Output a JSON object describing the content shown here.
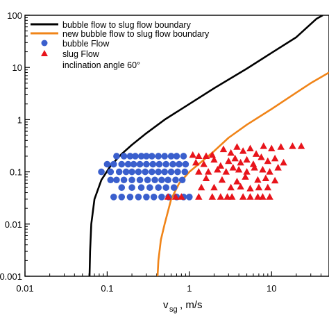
{
  "chart_data": {
    "type": "scatter",
    "title": "",
    "xlabel": {
      "main": "v",
      "sub": "sg",
      "unit": ",  m/s"
    },
    "ylabel": "",
    "x_scale": "log",
    "y_scale": "log",
    "xlim": [
      0.01,
      50
    ],
    "ylim": [
      0.001,
      100
    ],
    "x_ticks": [
      {
        "value": 0.01,
        "label": "0.01"
      },
      {
        "value": 0.1,
        "label": "0.1"
      },
      {
        "value": 1,
        "label": "1"
      },
      {
        "value": 10,
        "label": "10"
      }
    ],
    "y_ticks": [
      {
        "value": 0.001,
        "label": "0.001"
      },
      {
        "value": 0.01,
        "label": "0.01"
      },
      {
        "value": 0.1,
        "label": "0.1"
      },
      {
        "value": 1,
        "label": "1"
      },
      {
        "value": 10,
        "label": "10"
      },
      {
        "value": 100,
        "label": "100"
      }
    ],
    "grid": false,
    "legend": {
      "position": "top-left",
      "note": "inclination angle 60°"
    },
    "series": [
      {
        "name": "bubble flow to slug flow boundary",
        "kind": "line",
        "color": "#000000",
        "points": [
          [
            0.061,
            0.001
          ],
          [
            0.062,
            0.003
          ],
          [
            0.064,
            0.01
          ],
          [
            0.07,
            0.03
          ],
          [
            0.085,
            0.07
          ],
          [
            0.11,
            0.13
          ],
          [
            0.15,
            0.22
          ],
          [
            0.2,
            0.33
          ],
          [
            0.3,
            0.55
          ],
          [
            0.5,
            1.0
          ],
          [
            1,
            2.0
          ],
          [
            2,
            4.0
          ],
          [
            5,
            9.5
          ],
          [
            10,
            19
          ],
          [
            20,
            38
          ],
          [
            35,
            85
          ],
          [
            42,
            100
          ]
        ]
      },
      {
        "name": "new bubble flow to slug flow boundary",
        "kind": "line",
        "color": "#f08418",
        "points": [
          [
            0.41,
            0.001
          ],
          [
            0.42,
            0.002
          ],
          [
            0.45,
            0.005
          ],
          [
            0.5,
            0.01
          ],
          [
            0.6,
            0.03
          ],
          [
            0.75,
            0.06
          ],
          [
            1,
            0.1
          ],
          [
            1.5,
            0.17
          ],
          [
            2,
            0.25
          ],
          [
            3,
            0.45
          ],
          [
            5,
            0.8
          ],
          [
            10,
            1.6
          ],
          [
            20,
            3.3
          ],
          [
            30,
            5.0
          ],
          [
            50,
            8.0
          ]
        ]
      },
      {
        "name": "bubble Flow",
        "kind": "scatter",
        "marker": "circle",
        "color": "#3a5fcd",
        "points": [
          [
            0.13,
            0.2
          ],
          [
            0.16,
            0.2
          ],
          [
            0.19,
            0.2
          ],
          [
            0.22,
            0.2
          ],
          [
            0.26,
            0.2
          ],
          [
            0.3,
            0.2
          ],
          [
            0.35,
            0.2
          ],
          [
            0.42,
            0.2
          ],
          [
            0.5,
            0.2
          ],
          [
            0.6,
            0.2
          ],
          [
            0.7,
            0.2
          ],
          [
            0.85,
            0.2
          ],
          [
            0.1,
            0.14
          ],
          [
            0.12,
            0.14
          ],
          [
            0.15,
            0.14
          ],
          [
            0.18,
            0.14
          ],
          [
            0.21,
            0.14
          ],
          [
            0.25,
            0.14
          ],
          [
            0.3,
            0.14
          ],
          [
            0.36,
            0.14
          ],
          [
            0.43,
            0.14
          ],
          [
            0.52,
            0.14
          ],
          [
            0.63,
            0.14
          ],
          [
            0.75,
            0.14
          ],
          [
            0.9,
            0.14
          ],
          [
            0.085,
            0.1
          ],
          [
            0.11,
            0.1
          ],
          [
            0.14,
            0.1
          ],
          [
            0.17,
            0.1
          ],
          [
            0.2,
            0.1
          ],
          [
            0.24,
            0.1
          ],
          [
            0.29,
            0.1
          ],
          [
            0.35,
            0.1
          ],
          [
            0.42,
            0.1
          ],
          [
            0.5,
            0.1
          ],
          [
            0.6,
            0.1
          ],
          [
            0.72,
            0.1
          ],
          [
            0.88,
            0.1
          ],
          [
            0.11,
            0.07
          ],
          [
            0.13,
            0.07
          ],
          [
            0.16,
            0.07
          ],
          [
            0.2,
            0.07
          ],
          [
            0.25,
            0.07
          ],
          [
            0.31,
            0.07
          ],
          [
            0.38,
            0.07
          ],
          [
            0.46,
            0.07
          ],
          [
            0.55,
            0.07
          ],
          [
            0.68,
            0.07
          ],
          [
            0.82,
            0.07
          ],
          [
            0.15,
            0.05
          ],
          [
            0.2,
            0.05
          ],
          [
            0.26,
            0.05
          ],
          [
            0.33,
            0.05
          ],
          [
            0.42,
            0.05
          ],
          [
            0.52,
            0.05
          ],
          [
            0.65,
            0.05
          ],
          [
            0.12,
            0.033
          ],
          [
            0.15,
            0.033
          ],
          [
            0.19,
            0.033
          ],
          [
            0.24,
            0.033
          ],
          [
            0.3,
            0.033
          ],
          [
            0.37,
            0.033
          ],
          [
            0.46,
            0.033
          ],
          [
            0.56,
            0.033
          ],
          [
            0.7,
            0.033
          ],
          [
            0.85,
            0.033
          ],
          [
            1.0,
            0.033
          ]
        ]
      },
      {
        "name": "slug Flow",
        "kind": "scatter",
        "marker": "triangle",
        "color": "#e8141b",
        "points": [
          [
            1.1,
            0.21
          ],
          [
            1.3,
            0.2
          ],
          [
            1.6,
            0.2
          ],
          [
            1.9,
            0.21
          ],
          [
            2.6,
            0.27
          ],
          [
            3.2,
            0.23
          ],
          [
            3.8,
            0.3
          ],
          [
            4.5,
            0.25
          ],
          [
            5.5,
            0.28
          ],
          [
            6.5,
            0.22
          ],
          [
            8,
            0.31
          ],
          [
            10,
            0.28
          ],
          [
            13,
            0.3
          ],
          [
            18,
            0.31
          ],
          [
            23,
            0.31
          ],
          [
            1.2,
            0.15
          ],
          [
            1.5,
            0.14
          ],
          [
            2.0,
            0.17
          ],
          [
            2.4,
            0.13
          ],
          [
            3.0,
            0.16
          ],
          [
            3.6,
            0.18
          ],
          [
            4.2,
            0.15
          ],
          [
            5.0,
            0.17
          ],
          [
            6.0,
            0.14
          ],
          [
            7.5,
            0.19
          ],
          [
            9.0,
            0.16
          ],
          [
            11,
            0.18
          ],
          [
            14,
            0.15
          ],
          [
            1.3,
            0.1
          ],
          [
            1.7,
            0.1
          ],
          [
            2.2,
            0.11
          ],
          [
            2.8,
            0.1
          ],
          [
            3.4,
            0.12
          ],
          [
            4.0,
            0.11
          ],
          [
            5.0,
            0.1
          ],
          [
            6.2,
            0.12
          ],
          [
            7.8,
            0.11
          ],
          [
            9.5,
            0.1
          ],
          [
            12,
            0.12
          ],
          [
            1.6,
            0.075
          ],
          [
            2.5,
            0.07
          ],
          [
            3.8,
            0.065
          ],
          [
            4.8,
            0.08
          ],
          [
            6.8,
            0.07
          ],
          [
            8.5,
            0.075
          ],
          [
            11,
            0.068
          ],
          [
            1.4,
            0.05
          ],
          [
            2.0,
            0.05
          ],
          [
            3.2,
            0.05
          ],
          [
            4.2,
            0.052
          ],
          [
            5.5,
            0.048
          ],
          [
            7.0,
            0.05
          ],
          [
            9.0,
            0.05
          ],
          [
            0.55,
            0.033
          ],
          [
            0.68,
            0.033
          ],
          [
            0.8,
            0.033
          ],
          [
            1.3,
            0.033
          ],
          [
            1.9,
            0.033
          ],
          [
            2.4,
            0.033
          ],
          [
            2.9,
            0.033
          ],
          [
            3.3,
            0.033
          ],
          [
            4.5,
            0.033
          ],
          [
            5.5,
            0.033
          ],
          [
            6.8,
            0.033
          ],
          [
            7.8,
            0.033
          ],
          [
            9.5,
            0.033
          ]
        ]
      }
    ]
  }
}
